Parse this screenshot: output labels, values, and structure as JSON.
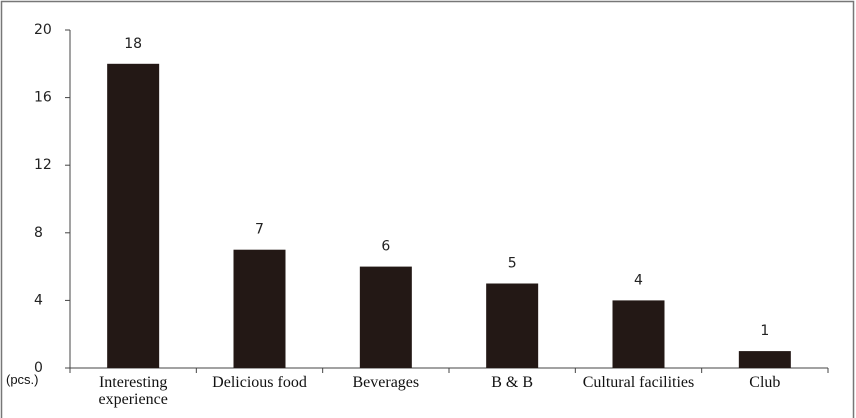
{
  "chart_data": {
    "type": "bar",
    "categories": [
      "Interesting experience",
      "Delicious food",
      "Beverages",
      "B & B",
      "Cultural facilities",
      "Club"
    ],
    "values": [
      18,
      7,
      6,
      5,
      4,
      1
    ],
    "color": "#231815",
    "ylim": [
      0,
      20
    ],
    "yticks": [
      0,
      4,
      8,
      12,
      16,
      20
    ],
    "y_unit": "(pcs.)",
    "grid": false
  }
}
